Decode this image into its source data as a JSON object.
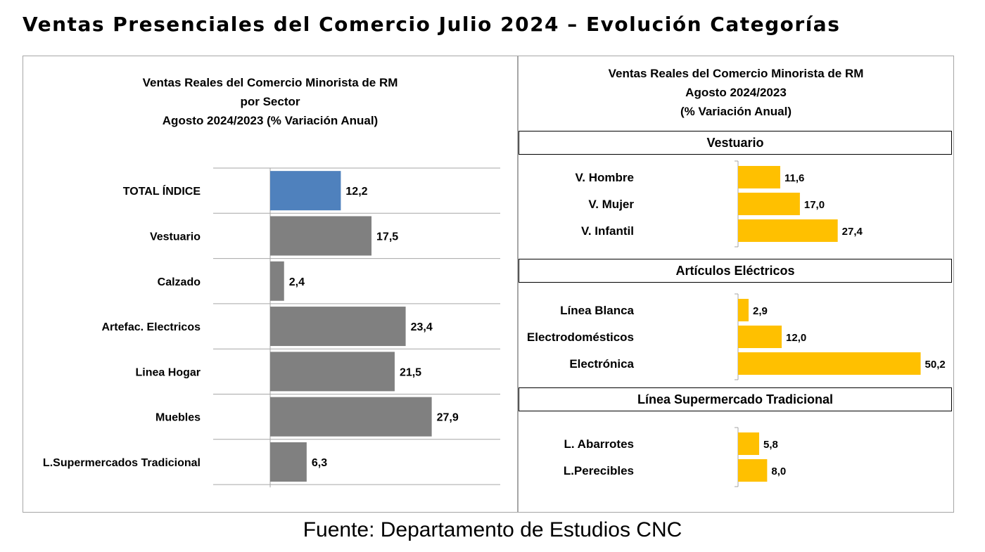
{
  "page_title": "Ventas Presenciales del Comercio Julio 2024 – Evolución Categorías",
  "source": "Fuente: Departamento de Estudios CNC",
  "colors": {
    "highlight": "#4f81bd",
    "gray": "#808080",
    "gold": "#ffc000",
    "grid": "#a6a6a6"
  },
  "chart_data": [
    {
      "type": "bar",
      "orientation": "horizontal",
      "title_lines": [
        "Ventas Reales del Comercio Minorista de RM",
        "por Sector",
        "Agosto 2024/2023 (% Variación Anual)"
      ],
      "categories": [
        "TOTAL ÍNDICE",
        "Vestuario",
        "Calzado",
        "Artefac. Electricos",
        "Linea Hogar",
        "Muebles",
        "L.Supermercados Tradicional"
      ],
      "values": [
        12.2,
        17.5,
        2.4,
        23.4,
        21.5,
        27.9,
        6.3
      ],
      "value_labels": [
        "12,2",
        "17,5",
        "2,4",
        "23,4",
        "21,5",
        "27,9",
        "6,3"
      ],
      "highlight_index": 0,
      "grid": true
    },
    {
      "type": "bar",
      "orientation": "horizontal",
      "title_lines": [
        "Ventas Reales del Comercio Minorista de RM",
        "Agosto 2024/2023",
        "(% Variación Anual)"
      ],
      "groups": [
        {
          "name": "Vestuario",
          "categories": [
            "V. Hombre",
            "V. Mujer",
            "V. Infantil"
          ],
          "values": [
            11.6,
            17.0,
            27.4
          ],
          "value_labels": [
            "11,6",
            "17,0",
            "27,4"
          ]
        },
        {
          "name": "Artículos Eléctricos",
          "categories": [
            "Línea Blanca",
            "Electrodomésticos",
            "Electrónica"
          ],
          "values": [
            2.9,
            12.0,
            50.2
          ],
          "value_labels": [
            "2,9",
            "12,0",
            "50,2"
          ]
        },
        {
          "name": "Línea Supermercado Tradicional",
          "categories": [
            "L. Abarrotes",
            "L.Perecibles"
          ],
          "values": [
            5.8,
            8.0
          ],
          "value_labels": [
            "5,8",
            "8,0"
          ]
        }
      ]
    }
  ]
}
